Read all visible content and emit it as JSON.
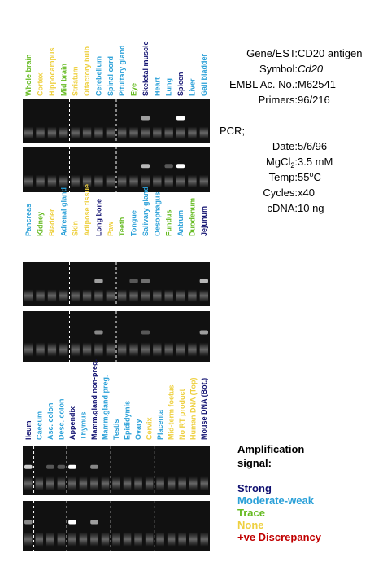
{
  "panels": [
    {
      "lanes": [
        {
          "label": "Whole brain",
          "color": "#66bb22"
        },
        {
          "label": "Cortex",
          "color": "#eed040"
        },
        {
          "label": "Hippocampus",
          "color": "#eed040"
        },
        {
          "label": "Mid brain",
          "color": "#66bb22"
        },
        {
          "label": "Striatum",
          "color": "#eed040"
        },
        {
          "label": "Olfactory bulb",
          "color": "#eed040"
        },
        {
          "label": "Cerebellum",
          "color": "#2aa0d8"
        },
        {
          "label": "Spinal cord",
          "color": "#2aa0d8"
        },
        {
          "label": "Pituitary gland",
          "color": "#2aa0d8"
        },
        {
          "label": "Eye",
          "color": "#66bb22"
        },
        {
          "label": "Skeletal muscle",
          "color": "#101070"
        },
        {
          "label": "Heart",
          "color": "#2aa0d8"
        },
        {
          "label": "Lung",
          "color": "#2aa0d8"
        },
        {
          "label": "Spleen",
          "color": "#101070"
        },
        {
          "label": "Liver",
          "color": "#2aa0d8"
        },
        {
          "label": "Gall bladder",
          "color": "#2aa0d8"
        }
      ]
    },
    {
      "lanes": [
        {
          "label": "Pancreas",
          "color": "#2aa0d8"
        },
        {
          "label": "Kidney",
          "color": "#66bb22"
        },
        {
          "label": "Bladder",
          "color": "#eed040"
        },
        {
          "label": "Adrenal gland",
          "color": "#2aa0d8"
        },
        {
          "label": "Skin",
          "color": "#eed040"
        },
        {
          "label": "Adipose tissue",
          "color": "#eed040"
        },
        {
          "label": "Long bone",
          "color": "#101070"
        },
        {
          "label": "Paw",
          "color": "#eed040"
        },
        {
          "label": "Teeth",
          "color": "#66bb22"
        },
        {
          "label": "Tongue",
          "color": "#2aa0d8"
        },
        {
          "label": "Salivary gland",
          "color": "#2aa0d8"
        },
        {
          "label": "Oesophagus",
          "color": "#2aa0d8"
        },
        {
          "label": "Fundus",
          "color": "#66bb22"
        },
        {
          "label": "Antrum",
          "color": "#2aa0d8"
        },
        {
          "label": "Duodenum",
          "color": "#66bb22"
        },
        {
          "label": "Jejunum",
          "color": "#101070"
        }
      ]
    },
    {
      "lanes": [
        {
          "label": "Ileum",
          "color": "#101070"
        },
        {
          "label": "Caecum",
          "color": "#2aa0d8"
        },
        {
          "label": "Asc. colon",
          "color": "#2aa0d8"
        },
        {
          "label": "Desc. colon",
          "color": "#2aa0d8"
        },
        {
          "label": "Appendix",
          "color": "#101070"
        },
        {
          "label": "Thymus",
          "color": "#2aa0d8"
        },
        {
          "label": "Mamm.gland non-preg.",
          "color": "#101070"
        },
        {
          "label": "Mamm.gland preg.",
          "color": "#2aa0d8"
        },
        {
          "label": "Testis",
          "color": "#2aa0d8"
        },
        {
          "label": "Epididymis",
          "color": "#2aa0d8"
        },
        {
          "label": "Ovary",
          "color": "#2aa0d8"
        },
        {
          "label": "Cervix",
          "color": "#eed040"
        },
        {
          "label": "Placenta",
          "color": "#2aa0d8"
        },
        {
          "label": "Mid-term foetus",
          "color": "#eed040"
        },
        {
          "label": "No RT product",
          "color": "#eed040"
        },
        {
          "label": "Human DNA (Top)",
          "color": "#eed040"
        },
        {
          "label": "Mouse DNA (Bot.)",
          "color": "#101070"
        }
      ]
    }
  ],
  "info": {
    "rows": [
      {
        "label": "Gene/EST:",
        "value": "CD20 antigen"
      },
      {
        "label": "Symbol:",
        "value": "Cd20"
      },
      {
        "label": "EMBL Ac. No.:",
        "value": "M62541"
      },
      {
        "label": "Primers:",
        "value": "96/216"
      }
    ],
    "pcr": "PCR;",
    "pcr_rows": [
      {
        "label": "Date:",
        "value": "5/6/96"
      },
      {
        "label_parts": [
          "MgCl",
          "2",
          ":"
        ],
        "value": "3.5 mM"
      },
      {
        "label": "Temp:",
        "value_parts": [
          "55",
          "o",
          "C"
        ]
      },
      {
        "label": "Cycles:",
        "value": "x40"
      },
      {
        "label": "cDNA:",
        "value": "10 ng"
      }
    ]
  },
  "legend": {
    "title": [
      "Amplification",
      "signal:"
    ],
    "items": [
      {
        "label": "Strong",
        "color": "#101070"
      },
      {
        "label": "Moderate-weak",
        "color": "#2aa0d8"
      },
      {
        "label": "Trace",
        "color": "#66bb22"
      },
      {
        "label": "None",
        "color": "#eed040"
      },
      {
        "label": "+ve Discrepancy",
        "color": "#c00000"
      }
    ]
  }
}
